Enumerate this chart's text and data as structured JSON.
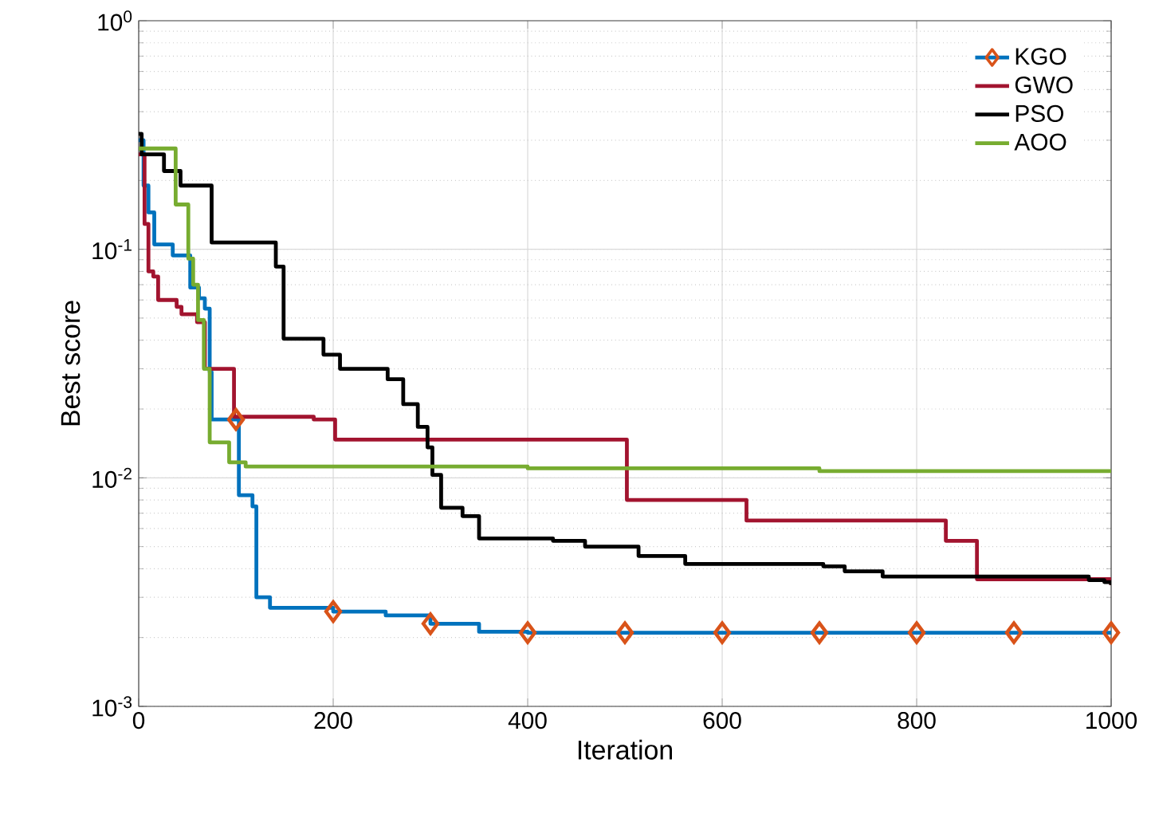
{
  "chart_data": {
    "type": "step",
    "xlabel": "Iteration",
    "ylabel": "Best score",
    "xlim": [
      0,
      1000
    ],
    "xticks": [
      0,
      200,
      400,
      600,
      800,
      1000
    ],
    "ylim": [
      0.001,
      1
    ],
    "yticks": [
      {
        "value": 0.001,
        "label": "10$^{-3}$"
      },
      {
        "value": 0.01,
        "label": "10$^{-2}$"
      },
      {
        "value": 0.1,
        "label": "10$^{-1}$"
      },
      {
        "value": 1,
        "label": "10$^{0}$"
      }
    ],
    "log": "y",
    "grid": true,
    "legend": "top right",
    "series": [
      {
        "name": "KGO",
        "color": "#0072bd",
        "x": [
          0,
          5,
          10,
          16,
          35,
          53,
          62,
          68,
          73,
          75,
          103,
          117,
          121,
          135,
          200,
          254,
          300,
          350,
          400,
          1000
        ],
        "values": [
          0.3,
          0.19,
          0.145,
          0.105,
          0.094,
          0.068,
          0.061,
          0.055,
          0.029,
          0.018,
          0.0084,
          0.0075,
          0.003,
          0.0027,
          0.0026,
          0.0025,
          0.0023,
          0.00212,
          0.0021,
          0.0021
        ]
      },
      {
        "type": "scatter",
        "color": "#d95319",
        "marker": "diamond",
        "x": [
          100,
          200,
          300,
          400,
          500,
          600,
          700,
          800,
          900,
          1000
        ],
        "values": [
          0.018,
          0.0026,
          0.0023,
          0.0021,
          0.0021,
          0.0021,
          0.0021,
          0.0021,
          0.0021,
          0.0021
        ]
      },
      {
        "name": "GWO",
        "color": "#a2142f",
        "x": [
          0,
          6,
          10,
          15,
          20,
          39,
          44,
          60,
          68,
          98,
          180,
          202,
          502,
          625,
          830,
          862,
          1000
        ],
        "values": [
          0.26,
          0.129,
          0.08,
          0.076,
          0.06,
          0.056,
          0.052,
          0.048,
          0.03,
          0.0185,
          0.018,
          0.0147,
          0.008,
          0.0065,
          0.0053,
          0.0036,
          0.0034
        ]
      },
      {
        "name": "PSO",
        "color": "#000000",
        "x": [
          0,
          3,
          26,
          43,
          75,
          141,
          149,
          190,
          207,
          256,
          272,
          287,
          297,
          302,
          311,
          333,
          350,
          426,
          459,
          514,
          562,
          704,
          726,
          765,
          880,
          977,
          993,
          1000
        ],
        "values": [
          0.32,
          0.26,
          0.22,
          0.19,
          0.107,
          0.084,
          0.0406,
          0.0346,
          0.03,
          0.027,
          0.021,
          0.0167,
          0.0136,
          0.0103,
          0.0074,
          0.0068,
          0.00543,
          0.0053,
          0.005,
          0.00455,
          0.0042,
          0.0041,
          0.0039,
          0.0037,
          0.0037,
          0.00357,
          0.0035,
          0.0034
        ]
      },
      {
        "name": "AOO",
        "color": "#77ac30",
        "x": [
          0,
          38,
          51,
          56,
          61,
          67,
          73,
          93,
          110,
          400,
          700,
          1000
        ],
        "values": [
          0.276,
          0.157,
          0.091,
          0.07,
          0.049,
          0.03,
          0.0143,
          0.0117,
          0.0112,
          0.011,
          0.0107,
          0.0105
        ]
      }
    ]
  }
}
